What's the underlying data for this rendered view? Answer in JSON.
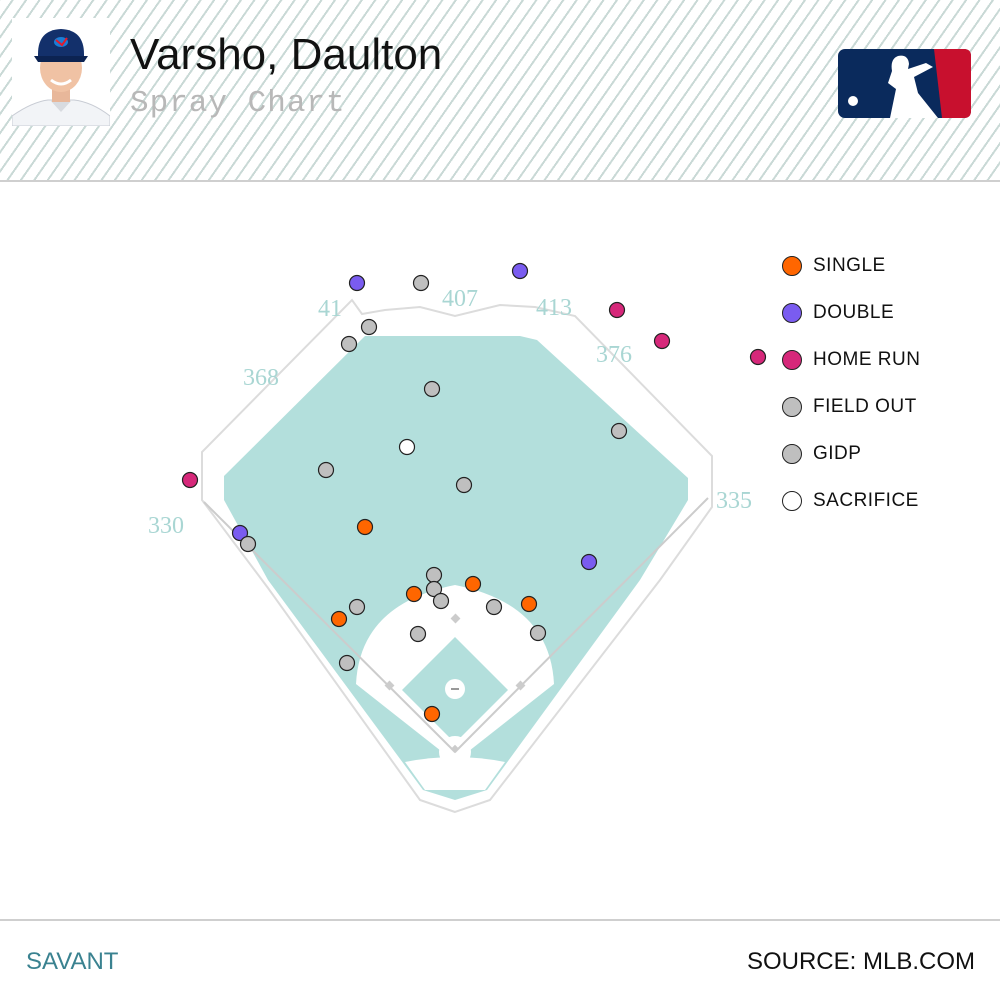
{
  "header": {
    "player_name": "Varsho, Daulton",
    "subtitle": "Spray Chart"
  },
  "icons": {
    "headshot": "player-headshot-icon",
    "logo": "mlb-logo-icon"
  },
  "colors": {
    "grass": "#b3dfdc",
    "infield_dirt": "#ffffff",
    "header_stripe": "#c9d9d6",
    "savant_text": "#3a8290",
    "mlb_blue": "#0a2a5c",
    "mlb_red": "#c8102e"
  },
  "footer": {
    "left": "SAVANT",
    "right": "SOURCE: MLB.COM"
  },
  "chart_data": {
    "type": "scatter",
    "distances": [
      {
        "label": "330",
        "field": "lf-line"
      },
      {
        "label": "368",
        "field": "lf-gap"
      },
      {
        "label": "41",
        "field": "lcf"
      },
      {
        "label": "407",
        "field": "cf"
      },
      {
        "label": "413",
        "field": "rcf"
      },
      {
        "label": "376",
        "field": "rf-gap"
      },
      {
        "label": "335",
        "field": "rf-line"
      }
    ],
    "legend": [
      {
        "name": "SINGLE",
        "color": "#ff6600"
      },
      {
        "name": "DOUBLE",
        "color": "#7a5cf0"
      },
      {
        "name": "HOME RUN",
        "color": "#d6287a"
      },
      {
        "name": "FIELD OUT",
        "color": "#bfbfbf"
      },
      {
        "name": "GIDP",
        "color": "#bfbfbf"
      },
      {
        "name": "SACRIFICE",
        "color": "#ffffff"
      }
    ],
    "coordinate_note": "hc_x/hc_y hit coordinates, home plate at (0,0), feet-like units: x left(-)/right(+), y toward center field",
    "points": [
      {
        "x": -98,
        "y": 448,
        "type": "DOUBLE"
      },
      {
        "x": -34,
        "y": 448,
        "type": "FIELD OUT"
      },
      {
        "x": 65,
        "y": 460,
        "type": "DOUBLE"
      },
      {
        "x": 162,
        "y": 421,
        "type": "HOME RUN"
      },
      {
        "x": 207,
        "y": 390,
        "type": "HOME RUN"
      },
      {
        "x": 303,
        "y": 374,
        "type": "HOME RUN"
      },
      {
        "x": -86,
        "y": 404,
        "type": "FIELD OUT"
      },
      {
        "x": -106,
        "y": 387,
        "type": "FIELD OUT"
      },
      {
        "x": -23,
        "y": 342,
        "type": "FIELD OUT"
      },
      {
        "x": 164,
        "y": 300,
        "type": "FIELD OUT"
      },
      {
        "x": -48,
        "y": 284,
        "type": "SACRIFICE"
      },
      {
        "x": -129,
        "y": 261,
        "type": "FIELD OUT"
      },
      {
        "x": 9,
        "y": 246,
        "type": "FIELD OUT"
      },
      {
        "x": -265,
        "y": 251,
        "type": "HOME RUN"
      },
      {
        "x": -90,
        "y": 204,
        "type": "SINGLE"
      },
      {
        "x": -215,
        "y": 198,
        "type": "DOUBLE"
      },
      {
        "x": -207,
        "y": 187,
        "type": "FIELD OUT"
      },
      {
        "x": 134,
        "y": 169,
        "type": "DOUBLE"
      },
      {
        "x": -21,
        "y": 156,
        "type": "FIELD OUT"
      },
      {
        "x": -21,
        "y": 142,
        "type": "FIELD OUT"
      },
      {
        "x": 18,
        "y": 147,
        "type": "SINGLE"
      },
      {
        "x": -41,
        "y": 137,
        "type": "SINGLE"
      },
      {
        "x": -14,
        "y": 130,
        "type": "FIELD OUT"
      },
      {
        "x": 39,
        "y": 124,
        "type": "FIELD OUT"
      },
      {
        "x": 74,
        "y": 127,
        "type": "SINGLE"
      },
      {
        "x": -98,
        "y": 124,
        "type": "FIELD OUT"
      },
      {
        "x": -116,
        "y": 112,
        "type": "SINGLE"
      },
      {
        "x": -37,
        "y": 97,
        "type": "FIELD OUT"
      },
      {
        "x": 83,
        "y": 98,
        "type": "FIELD OUT"
      },
      {
        "x": -108,
        "y": 68,
        "type": "FIELD OUT"
      },
      {
        "x": -23,
        "y": 17,
        "type": "SINGLE"
      }
    ]
  }
}
